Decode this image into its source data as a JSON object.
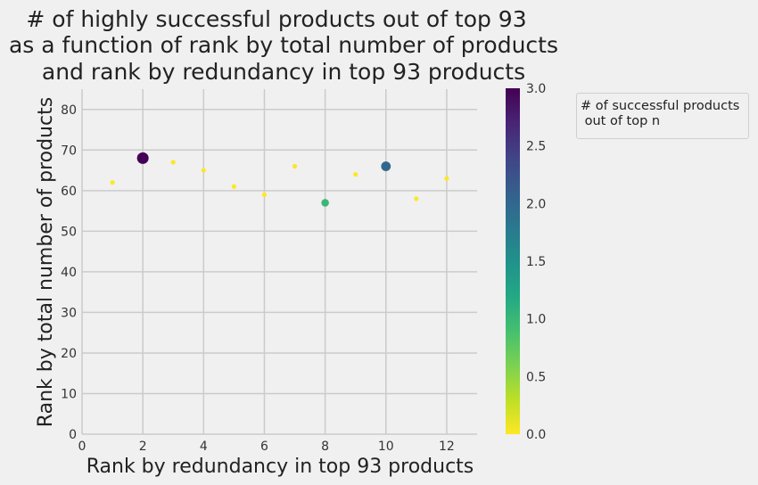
{
  "chart_data": {
    "type": "scatter",
    "title": [
      "# of highly successful products out of top 93",
      "as a function of rank by total number of products",
      "and rank by redundancy in top 93 products"
    ],
    "xlabel": "Rank by redundancy in top 93 products",
    "ylabel": "Rank by total number of products",
    "xlim": [
      0,
      13
    ],
    "ylim": [
      0,
      85
    ],
    "xticks": [
      0,
      2,
      4,
      6,
      8,
      10,
      12
    ],
    "yticks": [
      0,
      10,
      20,
      30,
      40,
      50,
      60,
      70,
      80
    ],
    "grid": true,
    "points": [
      {
        "x": 1,
        "y": 62,
        "value": 0
      },
      {
        "x": 2,
        "y": 68,
        "value": 3
      },
      {
        "x": 3,
        "y": 67,
        "value": 0
      },
      {
        "x": 4,
        "y": 65,
        "value": 0
      },
      {
        "x": 5,
        "y": 61,
        "value": 0
      },
      {
        "x": 6,
        "y": 59,
        "value": 0
      },
      {
        "x": 7,
        "y": 66,
        "value": 0
      },
      {
        "x": 8,
        "y": 57,
        "value": 1
      },
      {
        "x": 9,
        "y": 64,
        "value": 0
      },
      {
        "x": 10,
        "y": 66,
        "value": 2
      },
      {
        "x": 11,
        "y": 58,
        "value": 0
      },
      {
        "x": 12,
        "y": 63,
        "value": 0
      }
    ],
    "colorbar": {
      "colormap": "viridis",
      "reversed": true,
      "range": [
        0,
        3
      ],
      "ticks": [
        "0.0",
        "0.5",
        "1.0",
        "1.5",
        "2.0",
        "2.5",
        "3.0"
      ]
    },
    "legend": {
      "title": "# of successful products\n out of top n",
      "placement": "right"
    }
  }
}
